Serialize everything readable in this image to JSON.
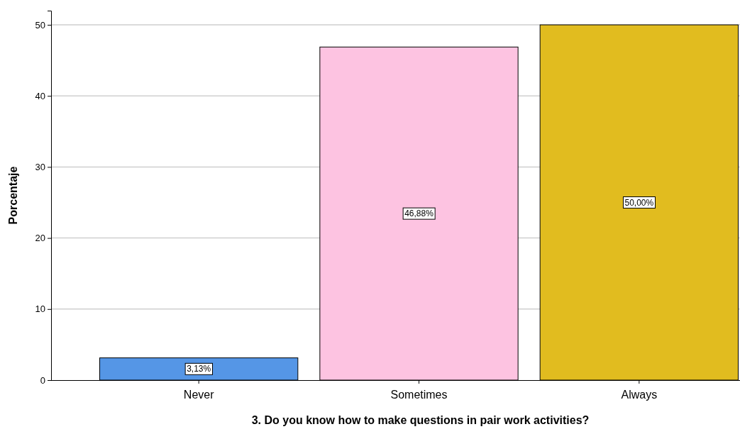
{
  "chart_data": {
    "type": "bar",
    "categories": [
      "Never",
      "Sometimes",
      "Always"
    ],
    "values": [
      3.13,
      46.88,
      50.0
    ],
    "colors": [
      "#5596e6",
      "#fdc3e1",
      "#e1bc1f"
    ],
    "value_labels": [
      "3,13%",
      "46,88%",
      "50,00%"
    ],
    "xlabel": "3. Do you know how to make questions in pair work activities?",
    "ylabel": "Porcentaje",
    "ylim": [
      0,
      52
    ],
    "yticks": [
      0,
      10,
      20,
      30,
      40,
      50
    ],
    "grid": "y"
  }
}
